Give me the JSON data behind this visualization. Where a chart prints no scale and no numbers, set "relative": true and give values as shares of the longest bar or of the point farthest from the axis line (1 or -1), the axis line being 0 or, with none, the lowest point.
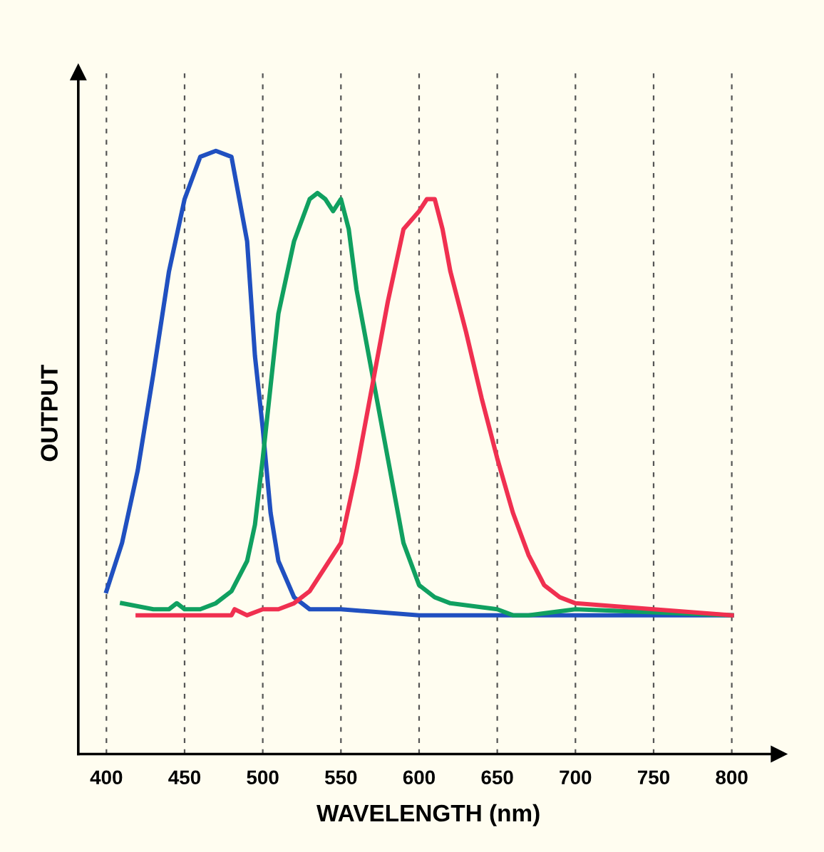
{
  "chart_data": {
    "type": "line",
    "relative": true,
    "xlabel": "WAVELENGTH (nm)",
    "ylabel": "OUTPUT",
    "xlim": [
      382,
      830
    ],
    "xticks": [
      400,
      450,
      500,
      550,
      600,
      650,
      700,
      750,
      800
    ],
    "grid": "x",
    "line_style": "solid",
    "tick_labels": "x",
    "series": [
      {
        "color": "#2050c0",
        "x": [
          400,
          410,
          420,
          430,
          440,
          450,
          460,
          470,
          480,
          490,
          495,
          500,
          505,
          510,
          520,
          530,
          550,
          600,
          650,
          700,
          750,
          800
        ],
        "values": [
          0.27,
          0.35,
          0.47,
          0.63,
          0.8,
          0.92,
          0.99,
          1.0,
          0.99,
          0.85,
          0.66,
          0.54,
          0.4,
          0.32,
          0.26,
          0.24,
          0.24,
          0.23,
          0.23,
          0.23,
          0.23,
          0.23
        ]
      },
      {
        "color": "#10a060",
        "x": [
          410,
          430,
          440,
          445,
          450,
          460,
          470,
          480,
          490,
          495,
          500,
          505,
          510,
          520,
          530,
          535,
          540,
          545,
          550,
          555,
          560,
          570,
          580,
          590,
          600,
          610,
          620,
          650,
          660,
          670,
          700,
          800
        ],
        "values": [
          0.25,
          0.24,
          0.24,
          0.25,
          0.24,
          0.24,
          0.25,
          0.27,
          0.32,
          0.38,
          0.49,
          0.61,
          0.73,
          0.85,
          0.92,
          0.93,
          0.92,
          0.9,
          0.92,
          0.87,
          0.77,
          0.63,
          0.49,
          0.35,
          0.28,
          0.26,
          0.25,
          0.24,
          0.23,
          0.23,
          0.24,
          0.23
        ]
      },
      {
        "color": "#f03050",
        "x": [
          420,
          480,
          482,
          490,
          500,
          510,
          520,
          530,
          540,
          550,
          560,
          570,
          580,
          590,
          600,
          605,
          610,
          615,
          620,
          630,
          640,
          650,
          660,
          670,
          680,
          690,
          700,
          750,
          800
        ],
        "values": [
          0.23,
          0.23,
          0.24,
          0.23,
          0.24,
          0.24,
          0.25,
          0.27,
          0.31,
          0.35,
          0.47,
          0.61,
          0.75,
          0.87,
          0.9,
          0.92,
          0.92,
          0.87,
          0.8,
          0.7,
          0.59,
          0.49,
          0.4,
          0.33,
          0.28,
          0.26,
          0.25,
          0.24,
          0.23
        ]
      }
    ]
  }
}
